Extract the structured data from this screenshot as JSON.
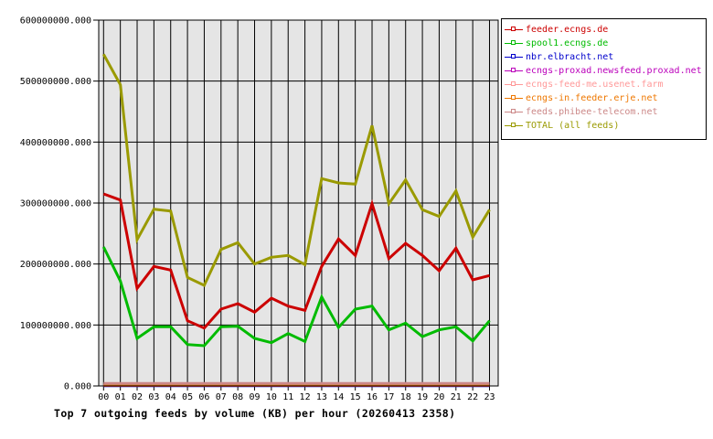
{
  "chart_data": {
    "type": "line",
    "title": "Top 7 outgoing feeds by volume (KB) per hour (20260413 2358)",
    "x_categories": [
      "00",
      "01",
      "02",
      "03",
      "04",
      "05",
      "06",
      "07",
      "08",
      "09",
      "10",
      "11",
      "12",
      "13",
      "14",
      "15",
      "16",
      "17",
      "18",
      "19",
      "20",
      "21",
      "22",
      "23"
    ],
    "xlabel": "",
    "ylabel": "",
    "ylim": [
      0,
      600000000
    ],
    "y_tick_interval": 100000000,
    "y_tick_labels": [
      "0.000",
      "100000000.000",
      "200000000.000",
      "300000000.000",
      "400000000.000",
      "500000000.000",
      "600000000.000"
    ],
    "grid": true,
    "plot_background": "#e5e5e5",
    "grid_color": "#000000",
    "legend_position": "top-right",
    "series": [
      {
        "name": "feeder.ecngs.de",
        "color": "#cc0000",
        "values": [
          315000000,
          305000000,
          160000000,
          196000000,
          190000000,
          107000000,
          95000000,
          126000000,
          135000000,
          121000000,
          144000000,
          131000000,
          124000000,
          196000000,
          241000000,
          214000000,
          299000000,
          209000000,
          234000000,
          214000000,
          189000000,
          226000000,
          174000000,
          181000000
        ]
      },
      {
        "name": "spool1.ecngs.de",
        "color": "#00bb00",
        "values": [
          228000000,
          172000000,
          78000000,
          97000000,
          97000000,
          68000000,
          66000000,
          97000000,
          98000000,
          78000000,
          71000000,
          86000000,
          73000000,
          146000000,
          96000000,
          126000000,
          131000000,
          92000000,
          103000000,
          81000000,
          92000000,
          97000000,
          74000000,
          107000000
        ]
      },
      {
        "name": "nbr.elbracht.net",
        "color": "#0000cc",
        "values": [
          500000,
          500000,
          500000,
          500000,
          500000,
          500000,
          500000,
          500000,
          500000,
          500000,
          500000,
          500000,
          500000,
          500000,
          500000,
          500000,
          500000,
          500000,
          500000,
          500000,
          500000,
          500000,
          500000,
          500000
        ]
      },
      {
        "name": "ecngs-proxad.newsfeed.proxad.net",
        "color": "#bb00bb",
        "values": [
          700000,
          700000,
          700000,
          700000,
          700000,
          700000,
          700000,
          700000,
          700000,
          700000,
          700000,
          700000,
          700000,
          700000,
          700000,
          700000,
          700000,
          700000,
          700000,
          700000,
          700000,
          700000,
          700000,
          700000
        ]
      },
      {
        "name": "ecngs-feed-me.usenet.farm",
        "color": "#ff9999",
        "values": [
          1500000,
          1500000,
          1500000,
          1500000,
          1500000,
          1500000,
          1500000,
          1500000,
          1500000,
          1500000,
          1500000,
          1500000,
          1500000,
          1500000,
          1500000,
          1500000,
          1500000,
          1500000,
          1500000,
          1500000,
          1500000,
          1500000,
          1500000,
          1500000
        ]
      },
      {
        "name": "ecngs-in.feeder.erje.net",
        "color": "#ee7700",
        "values": [
          1000000,
          1000000,
          1000000,
          1000000,
          1000000,
          1000000,
          1000000,
          1000000,
          1000000,
          1000000,
          1000000,
          1000000,
          1000000,
          1000000,
          1000000,
          1000000,
          1000000,
          1000000,
          1000000,
          1000000,
          1000000,
          1000000,
          1000000,
          1000000
        ]
      },
      {
        "name": "feeds.phibee-telecom.net",
        "color": "#cc8888",
        "values": [
          4000000,
          4000000,
          4000000,
          4000000,
          4000000,
          4000000,
          4000000,
          4000000,
          4000000,
          4000000,
          4000000,
          4000000,
          4000000,
          4000000,
          4000000,
          4000000,
          4000000,
          4000000,
          4000000,
          4000000,
          4000000,
          4000000,
          4000000,
          4000000
        ]
      },
      {
        "name": "TOTAL (all feeds)",
        "color": "#9a9a00",
        "values": [
          544000000,
          494000000,
          240000000,
          290000000,
          287000000,
          178000000,
          165000000,
          224000000,
          235000000,
          200000000,
          211000000,
          214000000,
          199000000,
          340000000,
          333000000,
          331000000,
          427000000,
          299000000,
          338000000,
          289000000,
          278000000,
          320000000,
          244000000,
          289000000
        ]
      }
    ]
  }
}
